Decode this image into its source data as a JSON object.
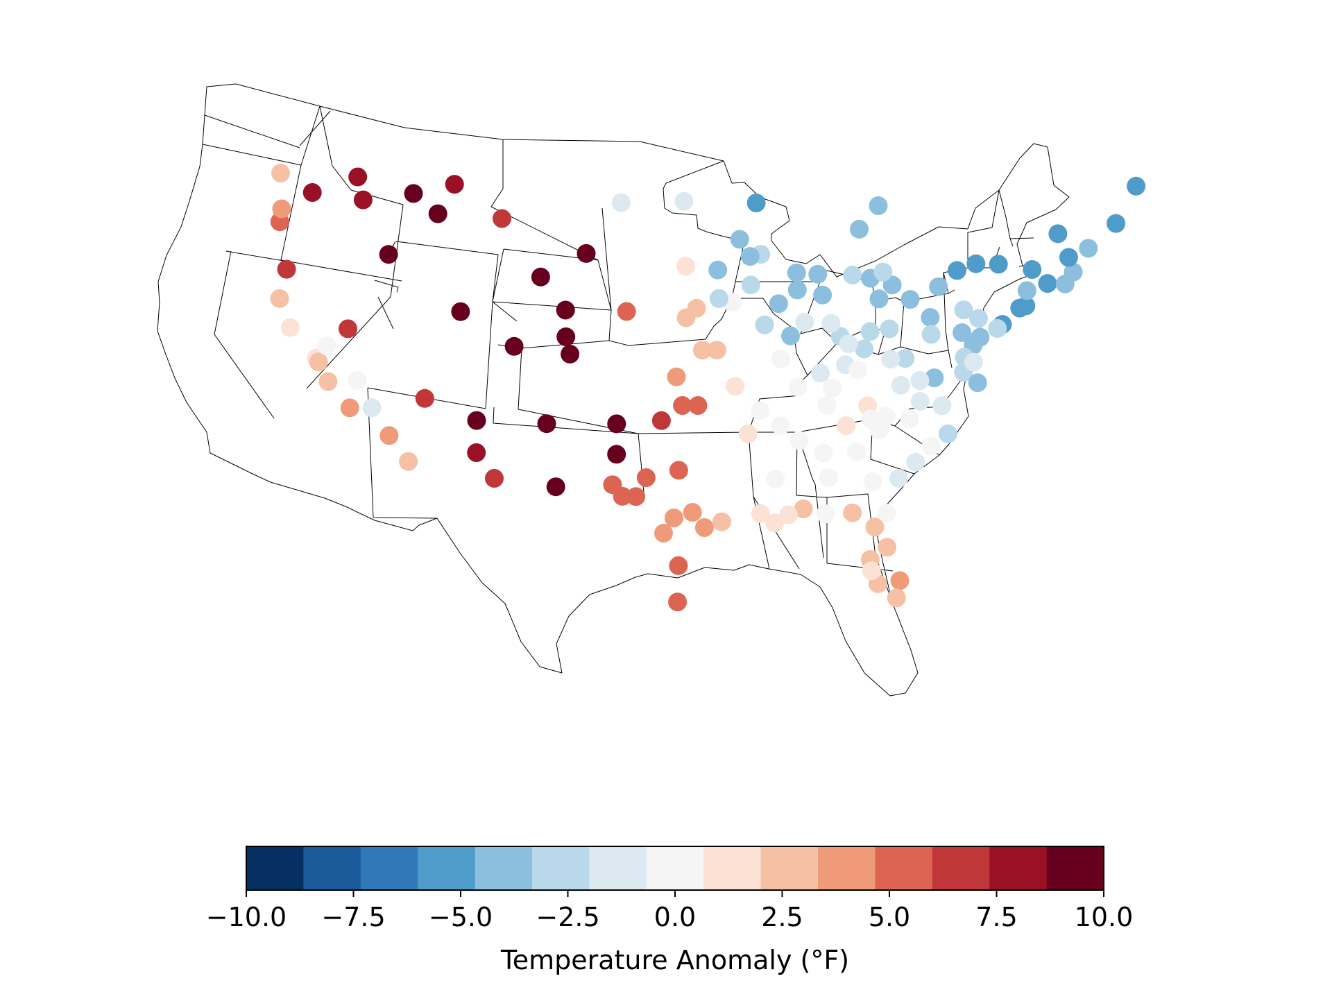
{
  "colorbar": {
    "label": "Temperature Anomaly (°F)",
    "range": [
      -10,
      10
    ],
    "bins": 15,
    "colors": [
      "#053061",
      "#1b5a9b",
      "#3178b8",
      "#4f9cca",
      "#8cbfdd",
      "#b9d8e9",
      "#dce9f1",
      "#f5f5f5",
      "#fbe2d5",
      "#f6c0a4",
      "#ef9b7a",
      "#dd6452",
      "#c13639",
      "#9a1126",
      "#67001f"
    ],
    "ticks": [
      "−10.0",
      "−7.5",
      "−5.0",
      "−2.5",
      "0.0",
      "2.5",
      "5.0",
      "7.5",
      "10.0"
    ]
  },
  "stations": [
    [
      -124.1,
      40.8,
      3.3
    ],
    [
      -123.8,
      39.3,
      1.2
    ],
    [
      -122.4,
      37.8,
      0.8
    ],
    [
      -122.3,
      37.6,
      2.8
    ],
    [
      -121.9,
      36.6,
      3.0
    ],
    [
      -121.5,
      38.5,
      0.0
    ],
    [
      -120.7,
      35.3,
      4.2
    ],
    [
      -119.8,
      36.8,
      0.0
    ],
    [
      -119.1,
      35.4,
      -1.5
    ],
    [
      -118.2,
      34.0,
      4.5
    ],
    [
      -117.1,
      32.7,
      3.2
    ],
    [
      -123.0,
      44.9,
      5.2
    ],
    [
      -123.2,
      42.4,
      6.0
    ],
    [
      -122.7,
      45.6,
      3.8
    ],
    [
      -122.3,
      47.5,
      2.5
    ],
    [
      -120.5,
      46.6,
      8.0
    ],
    [
      -117.4,
      47.6,
      8.4
    ],
    [
      -117.3,
      46.4,
      8.2
    ],
    [
      -119.8,
      39.5,
      6.8
    ],
    [
      -116.2,
      43.6,
      9.2
    ],
    [
      -115.2,
      36.1,
      6.8
    ],
    [
      -114.0,
      46.9,
      9.5
    ],
    [
      -112.6,
      45.9,
      9.3
    ],
    [
      -111.3,
      47.5,
      8.6
    ],
    [
      -108.5,
      45.8,
      6.8
    ],
    [
      -111.9,
      40.8,
      9.5
    ],
    [
      -106.3,
      42.8,
      9.5
    ],
    [
      -104.8,
      41.1,
      9.5
    ],
    [
      -104.9,
      39.7,
      9.5
    ],
    [
      -104.7,
      38.8,
      9.5
    ],
    [
      -108.5,
      39.1,
      9.5
    ],
    [
      -106.7,
      35.1,
      9.5
    ],
    [
      -111.7,
      35.1,
      9.5
    ],
    [
      -112.0,
      33.4,
      7.5
    ],
    [
      -110.9,
      32.1,
      6.8
    ],
    [
      -106.4,
      31.8,
      9.5
    ],
    [
      -103.2,
      44.1,
      9.5
    ],
    [
      -101.7,
      35.2,
      9.5
    ],
    [
      -101.8,
      33.6,
      9.5
    ],
    [
      -98.5,
      35.4,
      6.2
    ],
    [
      -97.0,
      36.2,
      4.9
    ],
    [
      -99.7,
      32.4,
      5.3
    ],
    [
      -97.3,
      32.8,
      5.1
    ],
    [
      -98.5,
      29.5,
      4.3
    ],
    [
      -97.7,
      30.3,
      4.4
    ],
    [
      -101.5,
      31.4,
      5.2
    ],
    [
      -102.2,
      32.0,
      5.8
    ],
    [
      -100.5,
      31.4,
      4.8
    ],
    [
      -97.4,
      27.8,
      5.0
    ],
    [
      -97.5,
      25.9,
      5.6
    ],
    [
      -95.4,
      29.8,
      4.0
    ],
    [
      -94.1,
      30.1,
      3.0
    ],
    [
      -96.3,
      30.6,
      4.3
    ],
    [
      -95.9,
      36.2,
      5.6
    ],
    [
      -100.7,
      41.1,
      5.9
    ],
    [
      -96.7,
      40.8,
      2.5
    ],
    [
      -96.0,
      41.3,
      2.4
    ],
    [
      -97.4,
      37.7,
      4.2
    ],
    [
      -95.6,
      39.1,
      2.0
    ],
    [
      -94.6,
      39.1,
      2.5
    ],
    [
      -93.3,
      37.2,
      1.5
    ],
    [
      -92.3,
      34.7,
      1.5
    ],
    [
      -90.2,
      38.6,
      -0.3
    ],
    [
      -93.6,
      41.6,
      0.1
    ],
    [
      -91.5,
      35.9,
      0.4
    ],
    [
      -88.0,
      30.7,
      2.0
    ],
    [
      -91.2,
      30.5,
      1.8
    ],
    [
      -90.1,
      30.0,
      1.2
    ],
    [
      -89.1,
      30.4,
      1.0
    ],
    [
      -90.2,
      32.3,
      0.4
    ],
    [
      -84.3,
      30.4,
      3.0
    ],
    [
      -82.5,
      29.6,
      2.8
    ],
    [
      -81.4,
      28.5,
      2.5
    ],
    [
      -82.6,
      27.9,
      2.2
    ],
    [
      -81.8,
      26.6,
      2.6
    ],
    [
      -80.1,
      26.7,
      3.5
    ],
    [
      -80.2,
      25.8,
      3.3
    ],
    [
      -81.7,
      30.3,
      0.5
    ],
    [
      -82.4,
      27.3,
      1.2
    ],
    [
      -86.3,
      30.4,
      0.0
    ],
    [
      -84.4,
      33.6,
      -0.6
    ],
    [
      -83.0,
      32.0,
      0.5
    ],
    [
      -81.1,
      32.1,
      -1.5
    ],
    [
      -80.0,
      32.9,
      -0.9
    ],
    [
      -79.0,
      33.7,
      -0.4
    ],
    [
      -86.8,
      33.6,
      -0.1
    ],
    [
      -86.3,
      32.3,
      0.0
    ],
    [
      -88.6,
      34.3,
      0.5
    ],
    [
      -90.0,
      35.1,
      0.4
    ],
    [
      -86.8,
      36.1,
      0.2
    ],
    [
      -83.9,
      36.0,
      0.9
    ],
    [
      -85.3,
      35.0,
      1.2
    ],
    [
      -82.5,
      35.4,
      -0.3
    ],
    [
      -80.8,
      35.2,
      -0.6
    ],
    [
      -82.9,
      34.7,
      0.3
    ],
    [
      -78.6,
      35.8,
      -1.0
    ],
    [
      -77.9,
      34.3,
      -2.6
    ],
    [
      -80.2,
      36.1,
      -1.5
    ],
    [
      -79.4,
      37.3,
      -3.5
    ],
    [
      -77.4,
      37.5,
      -3.0
    ],
    [
      -76.3,
      36.9,
      -4.4
    ],
    [
      -85.7,
      38.2,
      -0.8
    ],
    [
      -84.5,
      39.0,
      -2.5
    ],
    [
      -86.2,
      39.7,
      -2.8
    ],
    [
      -87.6,
      41.9,
      -3.8
    ],
    [
      -89.6,
      39.8,
      -3.9
    ],
    [
      -90.5,
      41.5,
      -3.6
    ],
    [
      -89.4,
      43.1,
      -3.5
    ],
    [
      -88.0,
      43.0,
      -4.5
    ],
    [
      -92.2,
      46.8,
      -5.0
    ],
    [
      -93.2,
      44.9,
      -4.2
    ],
    [
      -96.8,
      46.9,
      -2.0
    ],
    [
      -100.8,
      46.8,
      -1.0
    ],
    [
      -91.8,
      44.1,
      -3.0
    ],
    [
      -92.5,
      44.0,
      -3.8
    ],
    [
      -85.7,
      42.9,
      -3.3
    ],
    [
      -84.5,
      42.7,
      -3.5
    ],
    [
      -83.0,
      42.3,
      -4.5
    ],
    [
      -84.4,
      46.5,
      -4.3
    ],
    [
      -85.5,
      45.3,
      -3.5
    ],
    [
      -83.7,
      43.0,
      -3.3
    ],
    [
      -83.8,
      41.6,
      -4.0
    ],
    [
      -82.9,
      40.0,
      -3.2
    ],
    [
      -81.7,
      41.5,
      -4.6
    ],
    [
      -80.2,
      40.5,
      -4.3
    ],
    [
      -79.9,
      42.1,
      -3.8
    ],
    [
      -78.8,
      42.9,
      -4.8
    ],
    [
      -77.6,
      43.2,
      -4.8
    ],
    [
      -76.1,
      43.1,
      -5.2
    ],
    [
      -73.8,
      42.7,
      -5.3
    ],
    [
      -75.2,
      39.9,
      -5.0
    ],
    [
      -76.6,
      39.3,
      -4.5
    ],
    [
      -77.0,
      38.9,
      -4.4
    ],
    [
      -74.2,
      40.7,
      -5.0
    ],
    [
      -73.8,
      40.8,
      -5.2
    ],
    [
      -72.6,
      41.9,
      -5.0
    ],
    [
      -71.4,
      41.8,
      -4.6
    ],
    [
      -71.0,
      42.4,
      -4.0
    ],
    [
      -71.5,
      43.2,
      -4.9
    ],
    [
      -70.3,
      43.6,
      -4.3
    ],
    [
      -72.5,
      44.5,
      -4.8
    ],
    [
      -68.8,
      44.8,
      -5.5
    ],
    [
      -68.0,
      46.7,
      -5.0
    ],
    [
      -73.9,
      41.6,
      -4.2
    ],
    [
      -76.9,
      40.3,
      -3.2
    ],
    [
      -78.0,
      40.8,
      -2.5
    ],
    [
      -80.0,
      39.6,
      -2.6
    ],
    [
      -81.6,
      38.4,
      -3.0
    ],
    [
      -80.4,
      37.2,
      -1.8
    ],
    [
      -77.5,
      38.3,
      -2.3
    ],
    [
      -75.5,
      39.7,
      -3.3
    ],
    [
      -76.8,
      38.0,
      -2.0
    ],
    [
      -89.3,
      42.2,
      -3.5
    ],
    [
      -86.9,
      40.4,
      -2.0
    ],
    [
      -87.4,
      37.8,
      -1.5
    ],
    [
      -88.9,
      37.1,
      -0.5
    ],
    [
      -84.8,
      37.9,
      -0.6
    ],
    [
      -82.6,
      38.4,
      -1.0
    ],
    [
      -84.2,
      39.9,
      -2.5
    ],
    [
      -77.9,
      39.6,
      -4.3
    ],
    [
      -81.7,
      37.0,
      -1.5
    ],
    [
      -85.6,
      39.3,
      -1.5
    ],
    [
      -86.5,
      37.0,
      -0.3
    ],
    [
      -83.6,
      35.3,
      -0.1
    ],
    [
      -88.7,
      40.5,
      -1.9
    ],
    [
      -94.5,
      41.8,
      -2.5
    ],
    [
      -94.6,
      43.3,
      -3.8
    ],
    [
      -92.4,
      42.5,
      -3.0
    ],
    [
      -96.7,
      43.5,
      0.8
    ],
    [
      -91.4,
      40.4,
      -3.2
    ]
  ]
}
